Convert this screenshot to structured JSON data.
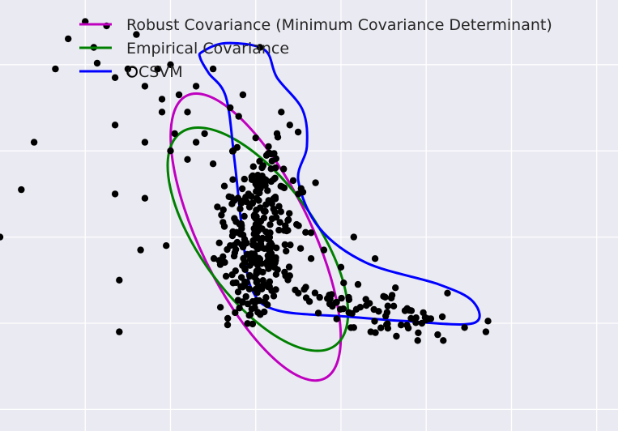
{
  "chart_data": {
    "type": "scatter",
    "title": "",
    "xlabel": "",
    "ylabel": "",
    "grid": true,
    "xlim": [
      -6,
      8.5
    ],
    "ylim": [
      -4.5,
      5.5
    ],
    "xticks": [
      -4,
      -2,
      0,
      2,
      4,
      6,
      8
    ],
    "yticks": [
      -4,
      -2,
      0,
      2,
      4
    ],
    "legend_placement": "top-left",
    "legend": [
      {
        "key": "robust",
        "label": "Robust Covariance (Minimum Covariance Determinant)",
        "color": "#bf00bf"
      },
      {
        "key": "empirical",
        "label": "Empirical Covariance",
        "color": "#008000"
      },
      {
        "key": "ocsvm",
        "label": "OCSVM",
        "color": "#0000ff"
      }
    ],
    "colors": {
      "background": "#eaeaf2",
      "grid": "#ffffff",
      "points": "#000000"
    },
    "contours": {
      "robust": {
        "center": [
          0.0,
          0.0
        ],
        "rx": 1.3,
        "ry": 3.65,
        "angle": -26,
        "color": "#bf00bf"
      },
      "empirical": {
        "center": [
          0.05,
          -0.05
        ],
        "rx": 1.35,
        "ry": 3.05,
        "angle": -36,
        "color": "#008000"
      },
      "ocsvm": {
        "color": "#0000ff",
        "points": [
          [
            -1.25,
            4.3
          ],
          [
            -0.7,
            4.5
          ],
          [
            0.2,
            4.35
          ],
          [
            0.5,
            3.7
          ],
          [
            1.1,
            2.95
          ],
          [
            1.2,
            2.1
          ],
          [
            1.0,
            1.3
          ],
          [
            1.5,
            0.2
          ],
          [
            2.6,
            -0.6
          ],
          [
            4.3,
            -1.1
          ],
          [
            5.1,
            -1.5
          ],
          [
            5.1,
            -2.0
          ],
          [
            3.5,
            -1.95
          ],
          [
            2.2,
            -1.85
          ],
          [
            0.5,
            -1.7
          ],
          [
            -0.1,
            -1.2
          ],
          [
            -0.3,
            0.0
          ],
          [
            -0.5,
            1.8
          ],
          [
            -0.7,
            3.25
          ],
          [
            -1.1,
            3.8
          ],
          [
            -1.3,
            4.15
          ]
        ]
      }
    },
    "points": [
      [
        -4.7,
        3.9
      ],
      [
        -4.4,
        4.6
      ],
      [
        -4.0,
        5.0
      ],
      [
        -3.8,
        4.4
      ],
      [
        -3.5,
        4.9
      ],
      [
        -3.3,
        3.7
      ],
      [
        -3.0,
        3.9
      ],
      [
        -2.8,
        4.7
      ],
      [
        -2.6,
        3.5
      ],
      [
        -2.3,
        3.9
      ],
      [
        -2.0,
        4.0
      ],
      [
        -2.2,
        3.2
      ],
      [
        -1.8,
        3.3
      ],
      [
        -1.6,
        2.9
      ],
      [
        -1.4,
        3.5
      ],
      [
        -1.9,
        2.4
      ],
      [
        -2.6,
        2.2
      ],
      [
        -3.3,
        2.6
      ],
      [
        -3.3,
        1.0
      ],
      [
        -2.6,
        0.9
      ],
      [
        -3.2,
        -1.0
      ],
      [
        -1.0,
        3.9
      ],
      [
        -0.6,
        3.0
      ],
      [
        0.6,
        2.9
      ],
      [
        0.5,
        2.4
      ],
      [
        1.0,
        1.0
      ],
      [
        1.3,
        0.1
      ],
      [
        1.3,
        -0.5
      ],
      [
        2.3,
        0.0
      ],
      [
        2.8,
        -0.5
      ],
      [
        3.1,
        -1.6
      ],
      [
        3.6,
        -1.7
      ],
      [
        3.2,
        -1.35
      ],
      [
        3.9,
        -2.0
      ],
      [
        4.5,
        -1.3
      ],
      [
        4.9,
        -2.1
      ],
      [
        5.4,
        -2.2
      ],
      [
        5.45,
        -1.95
      ],
      [
        0.1,
        4.4
      ],
      [
        -0.3,
        3.3
      ],
      [
        0.0,
        2.3
      ],
      [
        0.3,
        2.1
      ],
      [
        -6.0,
        0.0
      ],
      [
        -5.5,
        1.1
      ],
      [
        -5.2,
        2.2
      ],
      [
        -1.2,
        2.4
      ],
      [
        -1.0,
        1.7
      ],
      [
        -0.9,
        0.7
      ],
      [
        -0.6,
        -0.2
      ],
      [
        -0.2,
        -0.4
      ],
      [
        0.3,
        -0.5
      ],
      [
        0.7,
        -0.9
      ],
      [
        1.0,
        -1.3
      ],
      [
        1.5,
        -1.4
      ],
      [
        1.9,
        -1.9
      ],
      [
        2.3,
        -2.1
      ],
      [
        2.7,
        -2.2
      ],
      [
        3.3,
        -2.3
      ],
      [
        3.8,
        -2.4
      ],
      [
        4.4,
        -2.4
      ],
      [
        2.4,
        -1.1
      ],
      [
        2.0,
        -0.7
      ],
      [
        1.6,
        -0.3
      ],
      [
        -2.2,
        2.9
      ],
      [
        -2.0,
        2.0
      ],
      [
        -1.6,
        1.8
      ],
      [
        -1.4,
        2.2
      ],
      [
        -0.4,
        2.8
      ],
      [
        0.8,
        2.6
      ],
      [
        -3.2,
        -2.2
      ],
      [
        -2.7,
        -0.3
      ],
      [
        -2.1,
        -0.2
      ]
    ]
  }
}
